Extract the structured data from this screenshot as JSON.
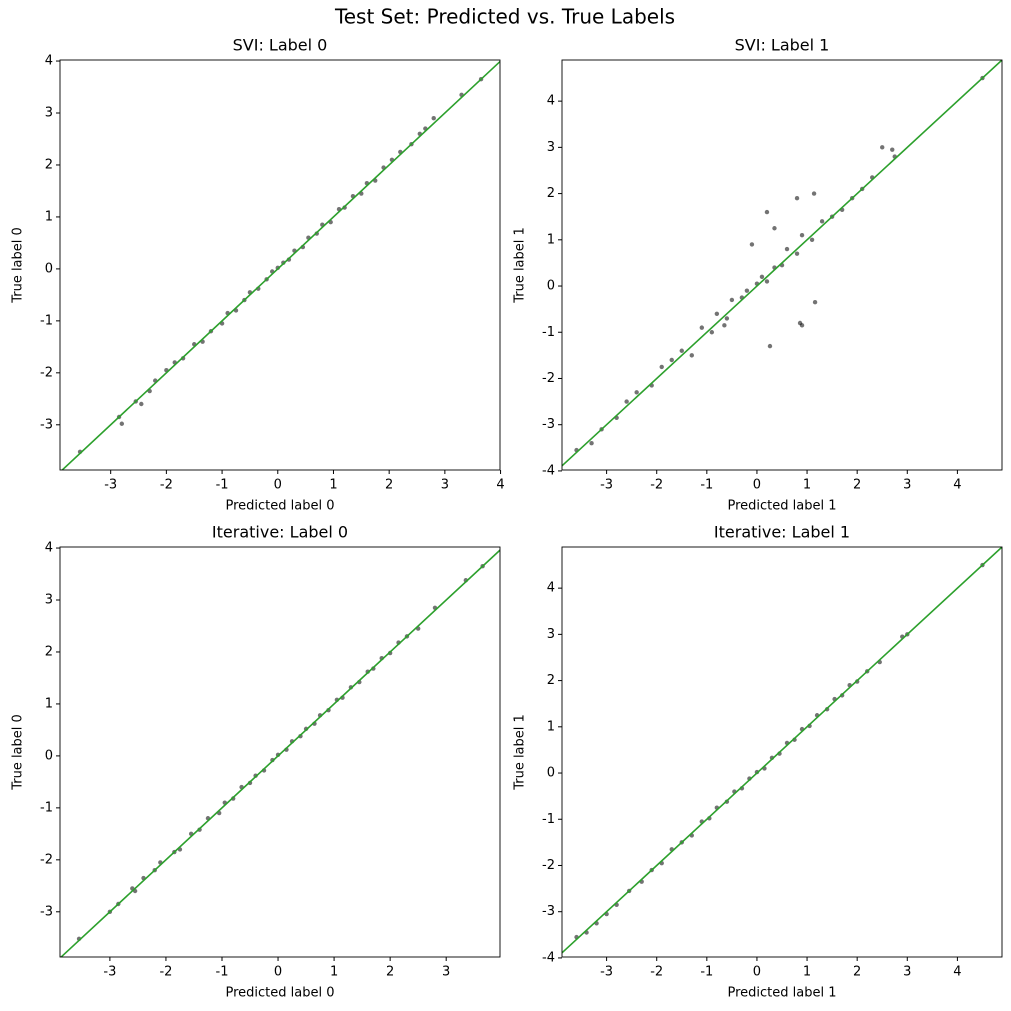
{
  "title": "Test Set: Predicted vs. True Labels",
  "chart_data": [
    {
      "type": "scatter",
      "title": "SVI: Label 0",
      "x_label": "Predicted label 0",
      "y_label": "True label 0",
      "xlim": [
        -3.91,
        3.99
      ],
      "ylim": [
        -3.87,
        4.02
      ],
      "xticks": [
        -3,
        -2,
        -1,
        0,
        1,
        2,
        3,
        4
      ],
      "yticks": [
        -3,
        -2,
        -1,
        0,
        1,
        2,
        3,
        4
      ],
      "color": "#000000",
      "x": [
        -3.55,
        -2.85,
        -2.8,
        -2.55,
        -2.45,
        -2.3,
        -2.2,
        -2.0,
        -1.85,
        -1.7,
        -1.5,
        -1.35,
        -1.2,
        -1.0,
        -0.9,
        -0.75,
        -0.6,
        -0.5,
        -0.35,
        -0.2,
        -0.1,
        0,
        0.1,
        0.2,
        0.3,
        0.45,
        0.55,
        0.7,
        0.8,
        0.95,
        1.1,
        1.2,
        1.35,
        1.5,
        1.6,
        1.75,
        1.9,
        2.05,
        2.2,
        2.4,
        2.55,
        2.65,
        2.8,
        3.3,
        3.65
      ],
      "values": [
        -3.52,
        -2.85,
        -2.98,
        -2.55,
        -2.6,
        -2.35,
        -2.15,
        -1.95,
        -1.8,
        -1.72,
        -1.45,
        -1.4,
        -1.2,
        -1.05,
        -0.85,
        -0.8,
        -0.6,
        -0.45,
        -0.38,
        -0.2,
        -0.05,
        0.02,
        0.12,
        0.18,
        0.35,
        0.42,
        0.6,
        0.68,
        0.85,
        0.9,
        1.15,
        1.18,
        1.4,
        1.45,
        1.65,
        1.7,
        1.95,
        2.1,
        2.25,
        2.4,
        2.6,
        2.7,
        2.9,
        3.35,
        3.65
      ],
      "diagonal": {
        "x": [
          -3.91,
          4.02
        ],
        "y": [
          -3.91,
          4.02
        ],
        "color": "#2ca02c"
      }
    },
    {
      "type": "scatter",
      "title": "SVI: Label 1",
      "x_label": "Predicted label 1",
      "y_label": "True label 1",
      "xlim": [
        -3.89,
        4.89
      ],
      "ylim": [
        -3.98,
        4.89
      ],
      "xticks": [
        -3,
        -2,
        -1,
        0,
        1,
        2,
        3,
        4
      ],
      "yticks": [
        -4,
        -3,
        -2,
        -1,
        0,
        1,
        2,
        3,
        4
      ],
      "color": "#000000",
      "x": [
        -3.6,
        -3.3,
        -3.1,
        -2.8,
        -2.6,
        -2.4,
        -2.1,
        -1.9,
        -1.7,
        -1.5,
        -1.3,
        -1.1,
        -0.9,
        -0.8,
        -0.6,
        -0.5,
        -0.3,
        -0.2,
        0,
        0.1,
        0.2,
        0.35,
        0.5,
        0.6,
        0.8,
        0.9,
        1.1,
        1.3,
        1.5,
        1.7,
        1.9,
        2.1,
        2.3,
        2.5,
        2.7,
        2.75,
        4.5,
        1.16,
        0.26,
        -0.65,
        0.86,
        0.9,
        -0.1,
        0.35,
        0.8,
        1.14,
        0.2
      ],
      "values": [
        -3.55,
        -3.4,
        -3.1,
        -2.85,
        -2.5,
        -2.3,
        -2.15,
        -1.75,
        -1.6,
        -1.4,
        -1.5,
        -0.9,
        -1.0,
        -0.6,
        -0.7,
        -0.3,
        -0.25,
        -0.1,
        0.05,
        0.2,
        0.1,
        0.4,
        0.45,
        0.8,
        0.7,
        1.1,
        1.0,
        1.4,
        1.5,
        1.65,
        1.9,
        2.1,
        2.35,
        3.0,
        2.95,
        2.8,
        4.5,
        -0.35,
        -1.3,
        -0.85,
        -0.8,
        -0.85,
        0.9,
        1.25,
        1.9,
        2.0,
        1.6
      ],
      "diagonal": {
        "x": [
          -3.98,
          4.89
        ],
        "y": [
          -3.98,
          4.89
        ],
        "color": "#2ca02c"
      }
    },
    {
      "type": "scatter",
      "title": "Iterative: Label 0",
      "x_label": "Predicted label 0",
      "y_label": "True label 0",
      "xlim": [
        -3.89,
        3.96
      ],
      "ylim": [
        -3.87,
        4.02
      ],
      "xticks": [
        -3,
        -2,
        -1,
        0,
        1,
        2,
        3
      ],
      "yticks": [
        -3,
        -2,
        -1,
        0,
        1,
        2,
        3,
        4
      ],
      "color": "#000000",
      "x": [
        -3.55,
        -3.0,
        -2.85,
        -2.6,
        -2.55,
        -2.4,
        -2.2,
        -2.1,
        -1.85,
        -1.75,
        -1.55,
        -1.4,
        -1.25,
        -1.05,
        -0.95,
        -0.8,
        -0.65,
        -0.5,
        -0.4,
        -0.25,
        -0.1,
        0,
        0.15,
        0.25,
        0.4,
        0.5,
        0.65,
        0.75,
        0.9,
        1.05,
        1.15,
        1.3,
        1.45,
        1.6,
        1.7,
        1.85,
        2.0,
        2.15,
        2.3,
        2.5,
        2.8,
        3.35,
        3.65
      ],
      "values": [
        -3.52,
        -3.0,
        -2.85,
        -2.55,
        -2.6,
        -2.35,
        -2.2,
        -2.05,
        -1.85,
        -1.8,
        -1.5,
        -1.42,
        -1.2,
        -1.1,
        -0.9,
        -0.82,
        -0.6,
        -0.52,
        -0.38,
        -0.28,
        -0.08,
        0.02,
        0.12,
        0.28,
        0.38,
        0.52,
        0.62,
        0.78,
        0.88,
        1.08,
        1.12,
        1.32,
        1.42,
        1.62,
        1.68,
        1.88,
        1.98,
        2.18,
        2.3,
        2.45,
        2.85,
        3.38,
        3.65
      ],
      "diagonal": {
        "x": [
          -3.89,
          4.02
        ],
        "y": [
          -3.89,
          4.02
        ],
        "color": "#2ca02c"
      }
    },
    {
      "type": "scatter",
      "title": "Iterative: Label 1",
      "x_label": "Predicted label 1",
      "y_label": "True label 1",
      "xlim": [
        -3.89,
        4.89
      ],
      "ylim": [
        -3.98,
        4.89
      ],
      "xticks": [
        -3,
        -2,
        -1,
        0,
        1,
        2,
        3,
        4
      ],
      "yticks": [
        -4,
        -3,
        -2,
        -1,
        0,
        1,
        2,
        3,
        4
      ],
      "color": "#000000",
      "x": [
        -3.6,
        -3.4,
        -3.2,
        -3.0,
        -2.8,
        -2.55,
        -2.3,
        -2.1,
        -1.9,
        -1.7,
        -1.5,
        -1.3,
        -1.1,
        -0.95,
        -0.8,
        -0.6,
        -0.45,
        -0.3,
        -0.15,
        0,
        0.15,
        0.3,
        0.45,
        0.6,
        0.75,
        0.9,
        1.05,
        1.2,
        1.4,
        1.55,
        1.7,
        1.85,
        2.0,
        2.2,
        2.45,
        2.9,
        3.0,
        4.5
      ],
      "values": [
        -3.55,
        -3.45,
        -3.25,
        -3.05,
        -2.85,
        -2.55,
        -2.35,
        -2.1,
        -1.95,
        -1.65,
        -1.5,
        -1.35,
        -1.05,
        -0.98,
        -0.75,
        -0.62,
        -0.4,
        -0.33,
        -0.12,
        0.02,
        0.1,
        0.33,
        0.42,
        0.65,
        0.72,
        0.95,
        1.02,
        1.25,
        1.38,
        1.6,
        1.68,
        1.9,
        1.98,
        2.2,
        2.4,
        2.95,
        3.0,
        4.5
      ],
      "diagonal": {
        "x": [
          -3.98,
          4.89
        ],
        "y": [
          -3.98,
          4.89
        ],
        "color": "#2ca02c"
      }
    }
  ]
}
